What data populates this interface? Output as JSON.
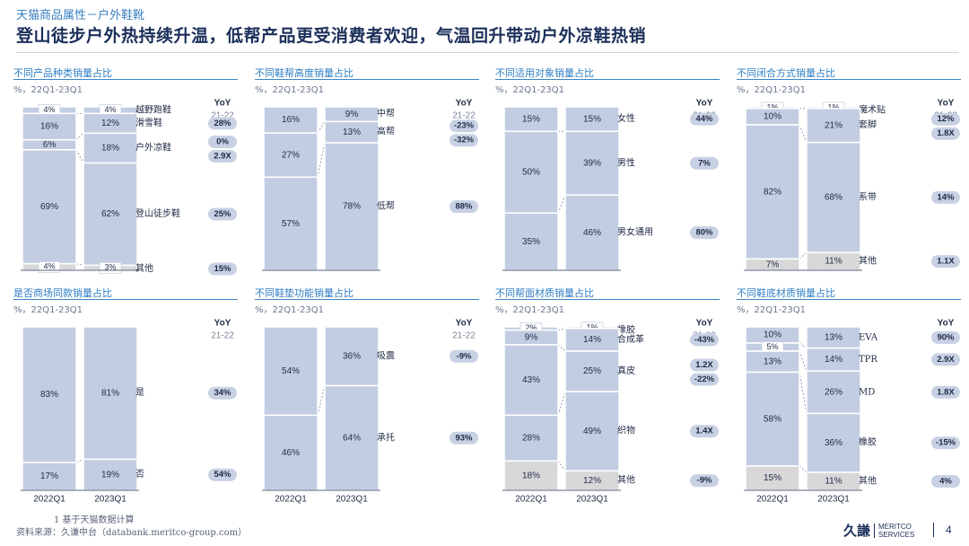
{
  "header": {
    "breadcrumb": "天猫商品属性－户外鞋靴",
    "title": "登山徒步户外热持续升温，低帮产品更受消费者欢迎，气温回升带动户外凉鞋热销"
  },
  "common": {
    "subtitle": "%，22Q1-23Q1",
    "yoy_header": "YoY",
    "yoy_period": "21-22",
    "x_labels": [
      "2022Q1",
      "2023Q1"
    ]
  },
  "colors": {
    "main": "#c2cde2",
    "other": "#d8d8d8",
    "edge": "#ffffff",
    "badge": "#c8d1e3",
    "accent": "#2f7ec4"
  },
  "chart_data": [
    {
      "type": "bar",
      "stacked": true,
      "title": "不同产品种类销量占比",
      "categories": [
        "2022Q1",
        "2023Q1"
      ],
      "series": [
        {
          "name": "越野跑鞋",
          "values": [
            4,
            4
          ],
          "yoy": ""
        },
        {
          "name": "滑雪鞋",
          "values": [
            16,
            12
          ],
          "yoy": "28%"
        },
        {
          "name": "户外凉鞋",
          "values": [
            6,
            18
          ],
          "yoy": "0%",
          "yoy2": "2.9X"
        },
        {
          "name": "登山徒步鞋",
          "values": [
            69,
            62
          ],
          "yoy": "25%"
        },
        {
          "name": "其他",
          "values": [
            4,
            3
          ],
          "yoy": "15%"
        }
      ]
    },
    {
      "type": "bar",
      "stacked": true,
      "title": "不同鞋帮高度销量占比",
      "categories": [
        "2022Q1",
        "2023Q1"
      ],
      "series": [
        {
          "name": "中帮",
          "values": [
            16,
            9
          ],
          "yoy": ""
        },
        {
          "name": "高帮",
          "values": [
            27,
            13
          ],
          "yoy": "-23%",
          "yoy2": "-32%"
        },
        {
          "name": "低帮",
          "values": [
            57,
            78
          ],
          "yoy": "88%"
        }
      ]
    },
    {
      "type": "bar",
      "stacked": true,
      "title": "不同适用对象销量占比",
      "categories": [
        "2022Q1",
        "2023Q1"
      ],
      "series": [
        {
          "name": "女性",
          "values": [
            15,
            15
          ],
          "yoy": "44%"
        },
        {
          "name": "男性",
          "values": [
            50,
            39
          ],
          "yoy": "7%"
        },
        {
          "name": "男女通用",
          "values": [
            35,
            46
          ],
          "yoy": "80%"
        }
      ]
    },
    {
      "type": "bar",
      "stacked": true,
      "title": "不同闭合方式销量占比",
      "categories": [
        "2022Q1",
        "2023Q1"
      ],
      "series": [
        {
          "name": "魔术贴",
          "values": [
            1,
            1
          ],
          "yoy": ""
        },
        {
          "name": "套脚",
          "values": [
            10,
            21
          ],
          "yoy": "12%",
          "yoy2": "1.8X"
        },
        {
          "name": "系带",
          "values": [
            82,
            68
          ],
          "yoy": "14%"
        },
        {
          "name": "其他",
          "values": [
            7,
            11
          ],
          "yoy": "1.1X"
        }
      ]
    },
    {
      "type": "bar",
      "stacked": true,
      "title": "是否商场同款销量占比",
      "categories": [
        "2022Q1",
        "2023Q1"
      ],
      "series": [
        {
          "name": "是",
          "values": [
            83,
            81
          ],
          "yoy": "34%"
        },
        {
          "name": "否",
          "values": [
            17,
            19
          ],
          "yoy": "54%"
        }
      ]
    },
    {
      "type": "bar",
      "stacked": true,
      "title": "不同鞋垫功能销量占比",
      "categories": [
        "2022Q1",
        "2023Q1"
      ],
      "series": [
        {
          "name": "吸震",
          "values": [
            54,
            36
          ],
          "yoy": "-9%"
        },
        {
          "name": "承托",
          "values": [
            46,
            64
          ],
          "yoy": "93%"
        }
      ]
    },
    {
      "type": "bar",
      "stacked": true,
      "title": "不同帮面材质销量占比",
      "categories": [
        "2022Q1",
        "2023Q1"
      ],
      "series": [
        {
          "name": "橡胶",
          "values": [
            2,
            1
          ],
          "yoy": ""
        },
        {
          "name": "合成革",
          "values": [
            9,
            14
          ],
          "yoy": "-43%"
        },
        {
          "name": "真皮",
          "values": [
            43,
            25
          ],
          "yoy": "1.2X",
          "yoy2": "-22%"
        },
        {
          "name": "织物",
          "values": [
            28,
            49
          ],
          "yoy": "1.4X"
        },
        {
          "name": "其他",
          "values": [
            18,
            12
          ],
          "yoy": "-9%"
        }
      ]
    },
    {
      "type": "bar",
      "stacked": true,
      "title": "不同鞋底材质销量占比",
      "categories": [
        "2022Q1",
        "2023Q1"
      ],
      "series": [
        {
          "name": "EVA",
          "values": [
            10,
            13
          ],
          "yoy": "90%"
        },
        {
          "name": "TPR",
          "values": [
            5,
            14
          ],
          "yoy": "2.9X"
        },
        {
          "name": "MD",
          "values": [
            13,
            26
          ],
          "yoy": "1.8X"
        },
        {
          "name": "橡胶",
          "values": [
            58,
            36
          ],
          "yoy": "-15%"
        },
        {
          "name": "其他",
          "values": [
            15,
            11
          ],
          "yoy": "4%"
        }
      ]
    }
  ],
  "footer": {
    "footnote": "1  基于天猫数据计算",
    "source": "资料来源：久谦中台（databank.meritco-group.com）",
    "logo_cn": "久謙",
    "logo_en_1": "MERITCO",
    "logo_en_2": "SERVICES",
    "page_number": "4"
  }
}
